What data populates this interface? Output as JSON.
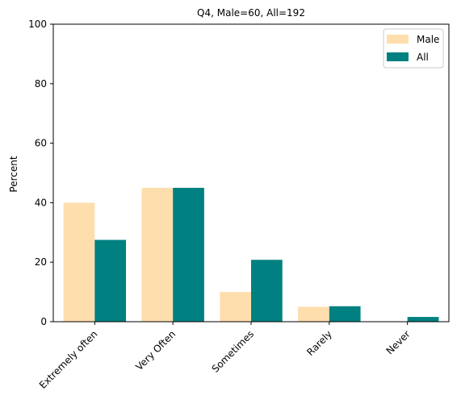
{
  "chart_data": {
    "type": "bar",
    "title": "Q4, Male=60, All=192",
    "xlabel": "",
    "ylabel": "Percent",
    "ylim": [
      0,
      100
    ],
    "yticks": [
      0,
      20,
      40,
      60,
      80,
      100
    ],
    "categories": [
      "Extremely often",
      "Very Often",
      "Sometimes",
      "Rarely",
      "Never"
    ],
    "series": [
      {
        "name": "Male",
        "color": "#FFDEAD",
        "values": [
          40.0,
          45.0,
          10.0,
          5.0,
          0.0
        ]
      },
      {
        "name": "All",
        "color": "#008080",
        "values": [
          27.5,
          45.0,
          20.8,
          5.2,
          1.6
        ]
      }
    ],
    "legend": {
      "position": "top-right"
    },
    "grid": false
  }
}
